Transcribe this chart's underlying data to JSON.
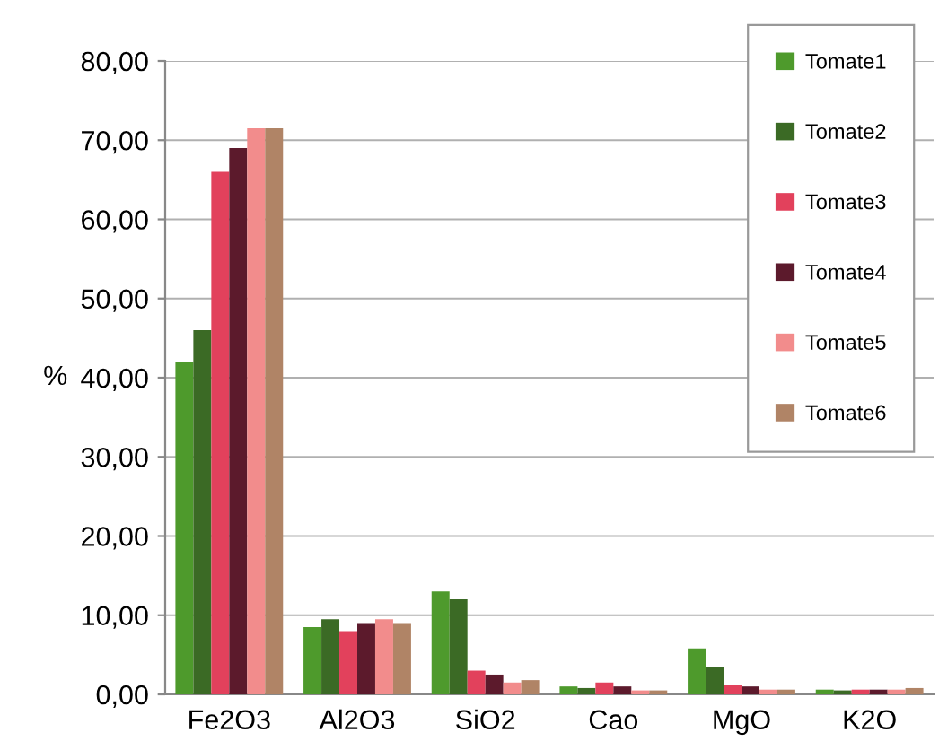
{
  "chart_data": {
    "type": "bar",
    "ylabel": "%",
    "categories": [
      "Fe2O3",
      "Al2O3",
      "SiO2",
      "Cao",
      "MgO",
      "K2O"
    ],
    "series": [
      {
        "name": "Tomate1",
        "color": "#4e9a2c",
        "values": [
          42,
          8.5,
          13,
          1,
          5.8,
          0.6
        ]
      },
      {
        "name": "Tomate2",
        "color": "#3b6a25",
        "values": [
          46,
          9.5,
          12,
          0.8,
          3.5,
          0.5
        ]
      },
      {
        "name": "Tomate3",
        "color": "#e2415c",
        "values": [
          66,
          8,
          3,
          1.5,
          1.2,
          0.6
        ]
      },
      {
        "name": "Tomate4",
        "color": "#5c1a2c",
        "values": [
          69,
          9,
          2.5,
          1,
          1,
          0.6
        ]
      },
      {
        "name": "Tomate5",
        "color": "#f28c8c",
        "values": [
          71.5,
          9.5,
          1.5,
          0.5,
          0.6,
          0.6
        ]
      },
      {
        "name": "Tomate6",
        "color": "#b08466",
        "values": [
          71.5,
          9,
          1.8,
          0.5,
          0.6,
          0.8
        ]
      }
    ],
    "ylim": [
      0,
      80
    ],
    "yticks": [
      {
        "value": 0,
        "label": "0,00"
      },
      {
        "value": 10,
        "label": "10,00"
      },
      {
        "value": 20,
        "label": "20,00"
      },
      {
        "value": 30,
        "label": "30,00"
      },
      {
        "value": 40,
        "label": "40,00"
      },
      {
        "value": 50,
        "label": "50,00"
      },
      {
        "value": 60,
        "label": "60,00"
      },
      {
        "value": 70,
        "label": "70,00"
      },
      {
        "value": 80,
        "label": "80,00"
      }
    ],
    "grid": "y",
    "legend": "top right"
  }
}
